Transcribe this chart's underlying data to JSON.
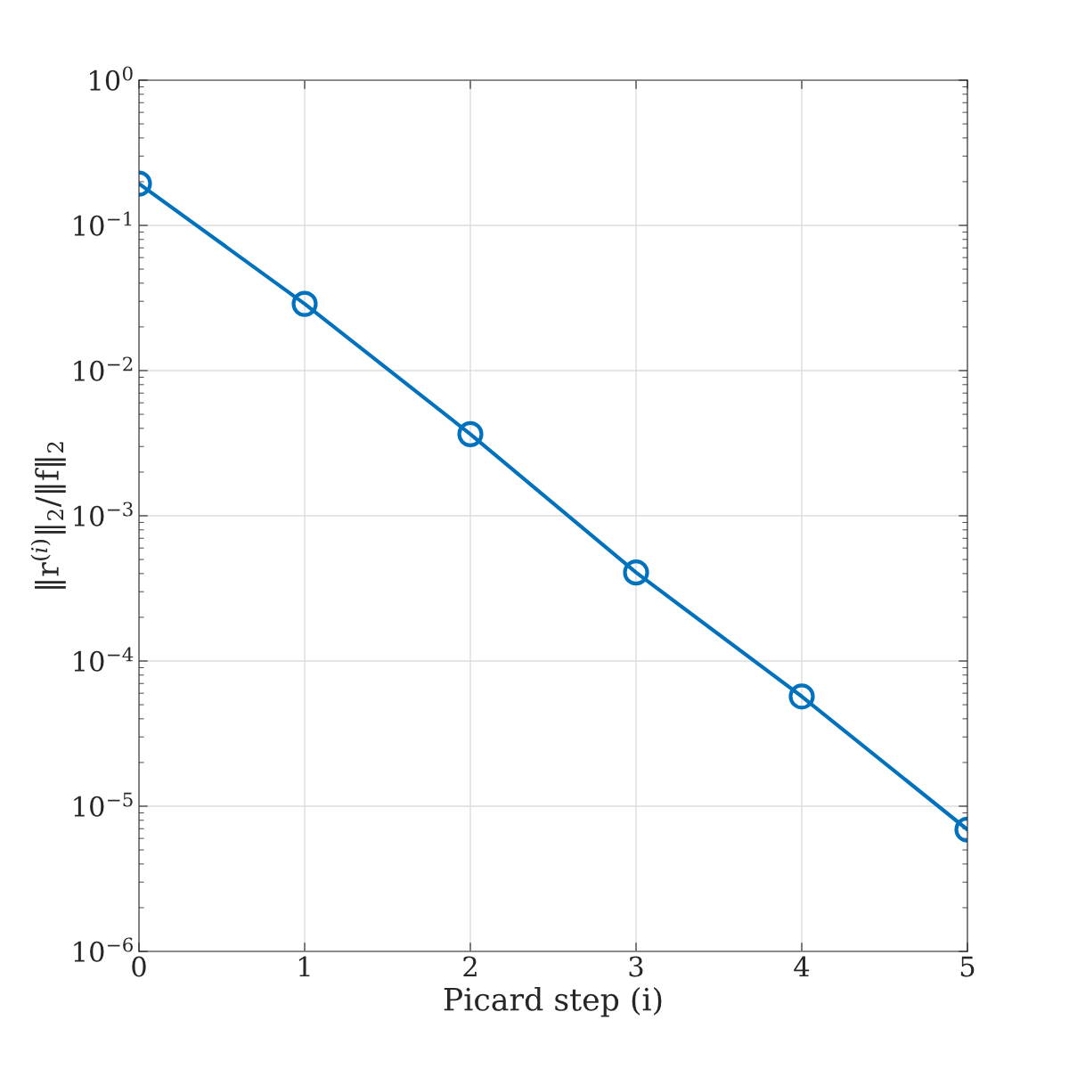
{
  "chart_data": {
    "type": "line",
    "xlabel": "Picard step (i)",
    "ylabel": "‖r$^{(i)}$‖$_{2}$/‖f‖$_{2}$",
    "x": [
      0,
      1,
      2,
      3,
      4,
      5
    ],
    "series": [
      {
        "color": "#0072bd",
        "values": [
          0.194,
          0.0288,
          0.00365,
          0.000407,
          5.7e-05,
          6.9e-06
        ]
      }
    ],
    "log": "y",
    "xlim": [
      0,
      5
    ],
    "xticks": [
      0,
      1,
      2,
      3,
      4,
      5
    ],
    "ylim": [
      1e-06,
      1
    ],
    "yticks": [
      {
        "value": 1e-06,
        "label": "10$^{−6}$"
      },
      {
        "value": 1e-05,
        "label": "10$^{−5}$"
      },
      {
        "value": 0.0001,
        "label": "10$^{−4}$"
      },
      {
        "value": 0.001,
        "label": "10$^{−3}$"
      },
      {
        "value": 0.01,
        "label": "10$^{−2}$"
      },
      {
        "value": 0.1,
        "label": "10$^{−1}$"
      },
      {
        "value": 1,
        "label": "10$^{0}$"
      }
    ],
    "grid": true,
    "marker": "circle",
    "line_style": "solid"
  }
}
